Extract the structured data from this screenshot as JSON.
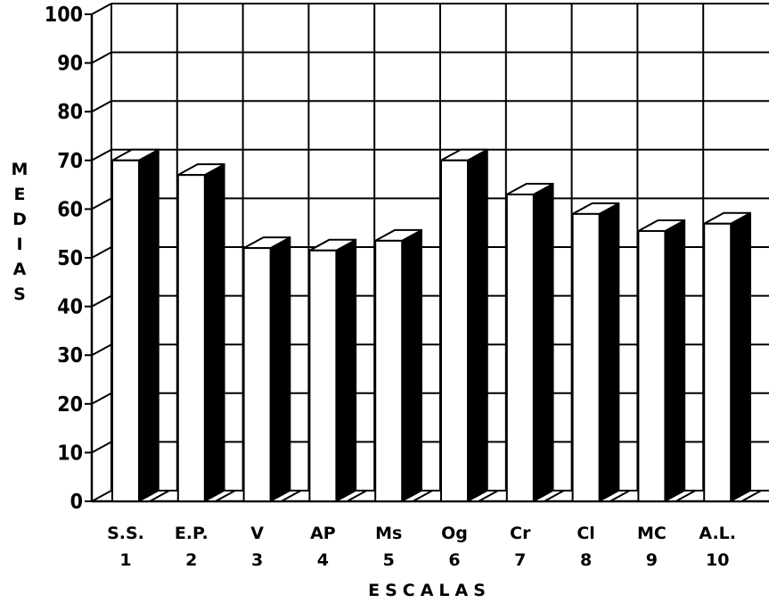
{
  "chart_data": {
    "type": "bar",
    "style": "3d",
    "categories": [
      {
        "abbr": "S.S.",
        "num": "1"
      },
      {
        "abbr": "E.P.",
        "num": "2"
      },
      {
        "abbr": "V",
        "num": "3"
      },
      {
        "abbr": "AP",
        "num": "4"
      },
      {
        "abbr": "Ms",
        "num": "5"
      },
      {
        "abbr": "Og",
        "num": "6"
      },
      {
        "abbr": "Cr",
        "num": "7"
      },
      {
        "abbr": "Cl",
        "num": "8"
      },
      {
        "abbr": "MC",
        "num": "9"
      },
      {
        "abbr": "A.L.",
        "num": "10"
      }
    ],
    "values": [
      70,
      67,
      52,
      51.5,
      53.5,
      70,
      63,
      59,
      55.5,
      57
    ],
    "ylabel": "MEDIAS",
    "xlabel": "ESCALAS",
    "ylim": [
      0,
      100
    ],
    "yticks": [
      "0",
      "10",
      "20",
      "30",
      "40",
      "50",
      "60",
      "70",
      "80",
      "90",
      "100"
    ],
    "grid": true,
    "colors": {
      "bar_front": "#ffffff",
      "bar_side": "#000000",
      "bar_top": "#ffffff",
      "grid": "#000000"
    }
  }
}
